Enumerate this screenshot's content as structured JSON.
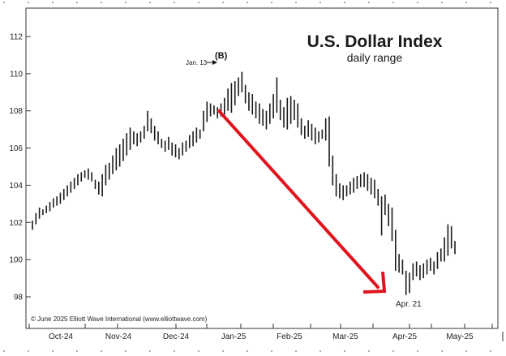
{
  "chart_data": {
    "type": "bar",
    "subtype": "ohlc-daily-range",
    "title": "U.S. Dollar Index",
    "subtitle": "daily range",
    "ylim": [
      97,
      113
    ],
    "y_ticks": [
      98,
      100,
      102,
      104,
      106,
      108,
      110,
      112
    ],
    "x_tick_labels": [
      "Oct-24",
      "Nov-24",
      "Dec-24",
      "Jan-25",
      "Feb-25",
      "Mar-25",
      "Apr-25",
      "May-25"
    ],
    "grid": false,
    "annotations": {
      "wave_label": "(B)",
      "peak_label": "Jan. 13",
      "low_label": "Apr. 21",
      "copyright": "© June 2025 Elliott Wave International (www.elliottwave.com)"
    },
    "arrow": {
      "from": [
        108.0
      ],
      "to": [
        98.3
      ]
    },
    "colors": {
      "bars": "#1a1a1a",
      "arrow": "#e0141e",
      "frame": "#333333"
    },
    "bars": [
      [
        101.6,
        102.1
      ],
      [
        101.9,
        102.5
      ],
      [
        102.2,
        102.8
      ],
      [
        102.4,
        102.7
      ],
      [
        102.5,
        102.9
      ],
      [
        102.6,
        103.1
      ],
      [
        102.8,
        103.3
      ],
      [
        102.9,
        103.4
      ],
      [
        103.0,
        103.6
      ],
      [
        103.2,
        103.8
      ],
      [
        103.4,
        104.0
      ],
      [
        103.6,
        104.2
      ],
      [
        103.8,
        104.4
      ],
      [
        104.0,
        104.6
      ],
      [
        104.2,
        104.7
      ],
      [
        104.4,
        104.8
      ],
      [
        104.3,
        104.9
      ],
      [
        104.2,
        104.7
      ],
      [
        103.8,
        104.3
      ],
      [
        103.5,
        104.2
      ],
      [
        103.4,
        104.6
      ],
      [
        104.0,
        105.1
      ],
      [
        104.3,
        105.2
      ],
      [
        104.6,
        105.6
      ],
      [
        104.8,
        106.0
      ],
      [
        105.0,
        106.2
      ],
      [
        105.3,
        106.5
      ],
      [
        105.6,
        106.8
      ],
      [
        105.9,
        107.1
      ],
      [
        106.2,
        106.9
      ],
      [
        106.1,
        106.8
      ],
      [
        106.3,
        106.9
      ],
      [
        106.5,
        107.2
      ],
      [
        106.9,
        108.0
      ],
      [
        106.8,
        107.6
      ],
      [
        106.4,
        107.2
      ],
      [
        106.2,
        106.9
      ],
      [
        106.0,
        106.5
      ],
      [
        105.8,
        106.4
      ],
      [
        105.9,
        106.6
      ],
      [
        105.6,
        106.3
      ],
      [
        105.5,
        106.2
      ],
      [
        105.4,
        106.0
      ],
      [
        105.6,
        106.3
      ],
      [
        105.8,
        106.4
      ],
      [
        106.0,
        106.7
      ],
      [
        106.1,
        106.9
      ],
      [
        106.3,
        107.1
      ],
      [
        106.5,
        107.0
      ],
      [
        106.9,
        108.0
      ],
      [
        107.4,
        108.5
      ],
      [
        107.7,
        108.4
      ],
      [
        107.8,
        108.3
      ],
      [
        107.6,
        108.2
      ],
      [
        107.7,
        108.4
      ],
      [
        107.8,
        108.7
      ],
      [
        108.0,
        109.2
      ],
      [
        107.9,
        109.5
      ],
      [
        108.3,
        109.6
      ],
      [
        108.8,
        109.8
      ],
      [
        109.0,
        110.1
      ],
      [
        108.4,
        109.4
      ],
      [
        108.0,
        109.0
      ],
      [
        107.8,
        108.9
      ],
      [
        107.6,
        108.5
      ],
      [
        107.3,
        108.4
      ],
      [
        107.2,
        108.1
      ],
      [
        107.0,
        108.0
      ],
      [
        107.3,
        108.4
      ],
      [
        107.6,
        108.9
      ],
      [
        107.9,
        109.8
      ],
      [
        107.5,
        108.6
      ],
      [
        107.1,
        108.2
      ],
      [
        107.0,
        108.7
      ],
      [
        107.3,
        108.8
      ],
      [
        107.5,
        108.6
      ],
      [
        107.1,
        108.4
      ],
      [
        106.7,
        107.6
      ],
      [
        106.5,
        107.2
      ],
      [
        106.6,
        107.5
      ],
      [
        106.4,
        107.3
      ],
      [
        106.2,
        107.1
      ],
      [
        106.3,
        106.9
      ],
      [
        106.5,
        107.0
      ],
      [
        106.4,
        107.6
      ],
      [
        105.0,
        107.7
      ],
      [
        104.0,
        105.6
      ],
      [
        103.4,
        104.6
      ],
      [
        103.3,
        104.1
      ],
      [
        103.2,
        104.0
      ],
      [
        103.4,
        104.0
      ],
      [
        103.5,
        104.2
      ],
      [
        103.6,
        104.4
      ],
      [
        103.8,
        104.5
      ],
      [
        103.9,
        104.6
      ],
      [
        103.9,
        104.7
      ],
      [
        103.7,
        104.6
      ],
      [
        103.5,
        104.4
      ],
      [
        103.3,
        104.3
      ],
      [
        102.9,
        103.8
      ],
      [
        101.3,
        103.4
      ],
      [
        102.4,
        103.5
      ],
      [
        101.8,
        103.0
      ],
      [
        101.0,
        102.8
      ],
      [
        99.4,
        101.6
      ],
      [
        99.3,
        100.3
      ],
      [
        99.2,
        100.0
      ],
      [
        98.1,
        99.4
      ],
      [
        98.2,
        99.3
      ],
      [
        98.9,
        99.8
      ],
      [
        99.1,
        99.9
      ],
      [
        98.9,
        99.7
      ],
      [
        99.0,
        99.8
      ],
      [
        99.2,
        100.0
      ],
      [
        99.4,
        100.1
      ],
      [
        99.2,
        99.9
      ],
      [
        99.5,
        100.4
      ],
      [
        99.9,
        100.6
      ],
      [
        99.9,
        101.2
      ],
      [
        100.2,
        101.9
      ],
      [
        100.6,
        101.8
      ],
      [
        100.3,
        101.0
      ]
    ]
  }
}
